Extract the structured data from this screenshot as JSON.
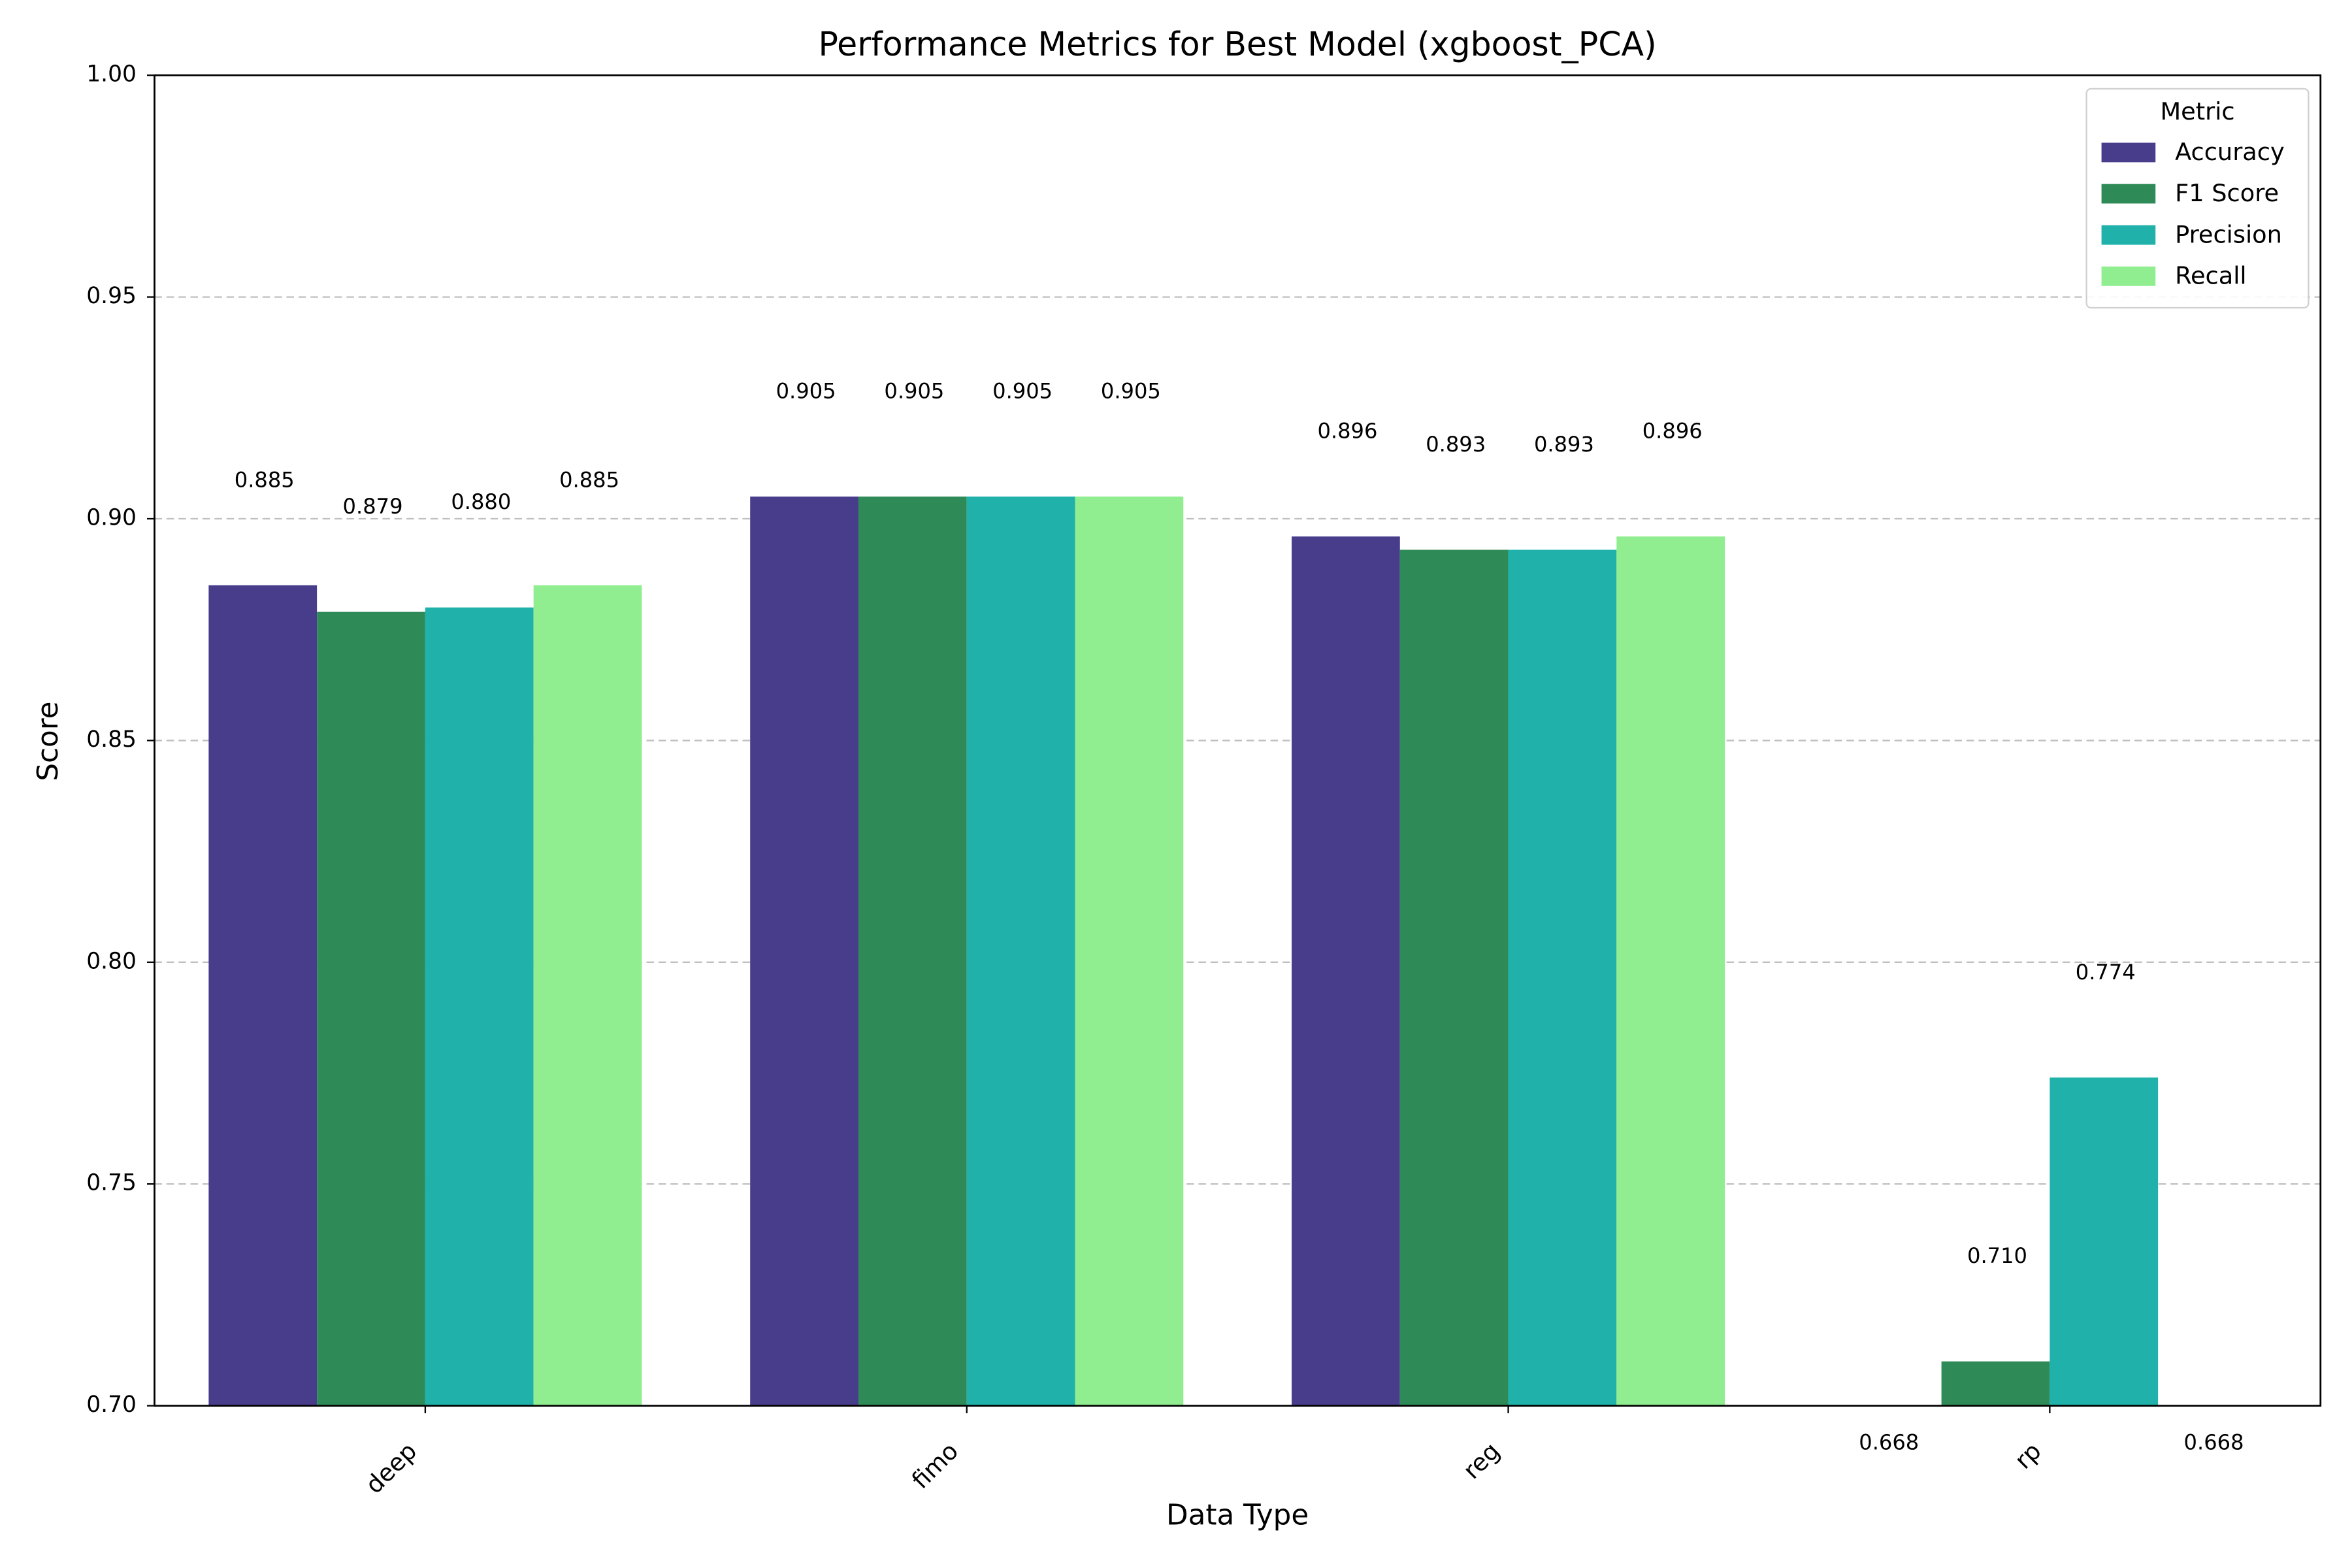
{
  "chart_data": {
    "type": "bar",
    "title": "Performance Metrics for Best Model (xgboost_PCA)",
    "x_label": "Data Type",
    "y_label": "Score",
    "legend_title": "Metric",
    "legend_position": "upper right",
    "categories": [
      "deep",
      "fimo",
      "reg",
      "rp"
    ],
    "series": [
      {
        "name": "Accuracy",
        "color": "#483d8b",
        "values": [
          0.885,
          0.905,
          0.896,
          0.668
        ],
        "value_labels": [
          "0.885",
          "0.905",
          "0.896",
          "0.668"
        ]
      },
      {
        "name": "F1 Score",
        "color": "#2e8b57",
        "values": [
          0.879,
          0.905,
          0.893,
          0.71
        ],
        "value_labels": [
          "0.879",
          "0.905",
          "0.893",
          "0.710"
        ]
      },
      {
        "name": "Precision",
        "color": "#20b2aa",
        "values": [
          0.88,
          0.905,
          0.893,
          0.774
        ],
        "value_labels": [
          "0.880",
          "0.905",
          "0.893",
          "0.774"
        ]
      },
      {
        "name": "Recall",
        "color": "#90ee90",
        "values": [
          0.885,
          0.905,
          0.896,
          0.668
        ],
        "value_labels": [
          "0.885",
          "0.905",
          "0.896",
          "0.668"
        ]
      }
    ],
    "ylim": [
      0.7,
      1.0
    ],
    "yticks": [
      {
        "value": 0.7,
        "label": "0.70"
      },
      {
        "value": 0.75,
        "label": "0.75"
      },
      {
        "value": 0.8,
        "label": "0.80"
      },
      {
        "value": 0.85,
        "label": "0.85"
      },
      {
        "value": 0.9,
        "label": "0.90"
      },
      {
        "value": 0.95,
        "label": "0.95"
      },
      {
        "value": 1.0,
        "label": "1.00"
      }
    ],
    "grid": true
  }
}
